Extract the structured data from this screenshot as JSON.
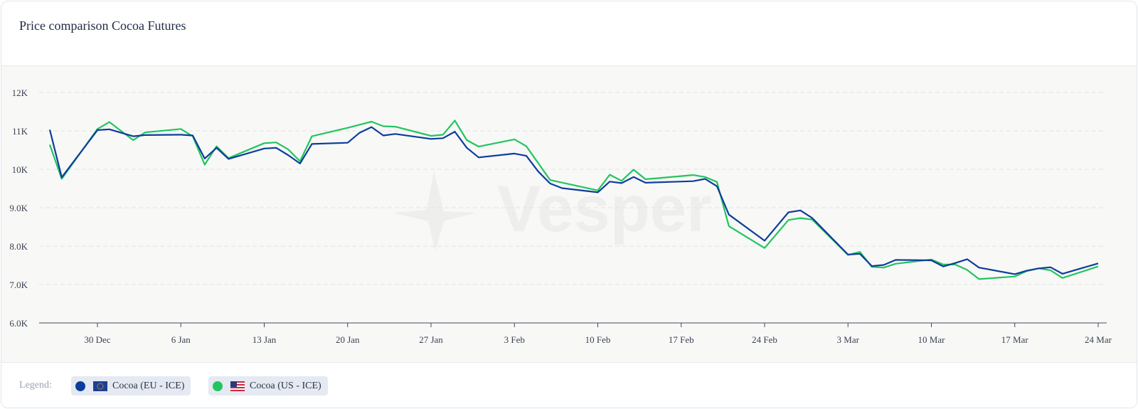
{
  "title": "Price comparison Cocoa Futures",
  "watermark": "Vesper",
  "legend": {
    "label": "Legend:",
    "items": [
      {
        "name": "Cocoa (EU - ICE)",
        "color": "#0d3d9c",
        "flag": "eu-flag-icon"
      },
      {
        "name": "Cocoa (US - ICE)",
        "color": "#22c55e",
        "flag": "us-flag-icon"
      }
    ]
  },
  "chart_data": {
    "type": "line",
    "title": "Price comparison Cocoa Futures",
    "xlabel": "",
    "ylabel": "",
    "ylim": [
      6000,
      12000
    ],
    "yticks": [
      6000,
      7000,
      8000,
      9000,
      10000,
      11000,
      12000
    ],
    "ytick_labels": [
      "6.0K",
      "7.0K",
      "8.0K",
      "9.0K",
      "10K",
      "11K",
      "12K"
    ],
    "xlim": [
      "2024-12-25",
      "2025-03-24"
    ],
    "xticks": [
      "2024-12-30",
      "2025-01-06",
      "2025-01-13",
      "2025-01-20",
      "2025-01-27",
      "2025-02-03",
      "2025-02-10",
      "2025-02-17",
      "2025-02-24",
      "2025-03-03",
      "2025-03-10",
      "2025-03-17",
      "2025-03-24"
    ],
    "xtick_labels": [
      "30 Dec",
      "6 Jan",
      "13 Jan",
      "20 Jan",
      "27 Jan",
      "3 Feb",
      "10 Feb",
      "17 Feb",
      "24 Feb",
      "3 Mar",
      "10 Mar",
      "17 Mar",
      "24 Mar"
    ],
    "grid": true,
    "legend_position": "bottom",
    "series": [
      {
        "name": "Cocoa (EU - ICE)",
        "color": "#0d3d9c",
        "points": [
          [
            "2024-12-26",
            11030
          ],
          [
            "2024-12-27",
            9790
          ],
          [
            "2024-12-30",
            11020
          ],
          [
            "2024-12-31",
            11040
          ],
          [
            "2025-01-02",
            10860
          ],
          [
            "2025-01-03",
            10890
          ],
          [
            "2025-01-06",
            10900
          ],
          [
            "2025-01-07",
            10880
          ],
          [
            "2025-01-08",
            10280
          ],
          [
            "2025-01-09",
            10560
          ],
          [
            "2025-01-10",
            10270
          ],
          [
            "2025-01-13",
            10540
          ],
          [
            "2025-01-14",
            10560
          ],
          [
            "2025-01-15",
            10370
          ],
          [
            "2025-01-16",
            10150
          ],
          [
            "2025-01-17",
            10660
          ],
          [
            "2025-01-20",
            10690
          ],
          [
            "2025-01-21",
            10950
          ],
          [
            "2025-01-22",
            11100
          ],
          [
            "2025-01-23",
            10880
          ],
          [
            "2025-01-24",
            10920
          ],
          [
            "2025-01-27",
            10790
          ],
          [
            "2025-01-28",
            10810
          ],
          [
            "2025-01-29",
            10980
          ],
          [
            "2025-01-30",
            10560
          ],
          [
            "2025-01-31",
            10310
          ],
          [
            "2025-02-03",
            10410
          ],
          [
            "2025-02-04",
            10350
          ],
          [
            "2025-02-05",
            9940
          ],
          [
            "2025-02-06",
            9630
          ],
          [
            "2025-02-07",
            9510
          ],
          [
            "2025-02-10",
            9400
          ],
          [
            "2025-02-11",
            9680
          ],
          [
            "2025-02-12",
            9640
          ],
          [
            "2025-02-13",
            9800
          ],
          [
            "2025-02-14",
            9650
          ],
          [
            "2025-02-18",
            9690
          ],
          [
            "2025-02-19",
            9750
          ],
          [
            "2025-02-20",
            9560
          ],
          [
            "2025-02-21",
            8820
          ],
          [
            "2025-02-24",
            8140
          ],
          [
            "2025-02-26",
            8880
          ],
          [
            "2025-02-27",
            8930
          ],
          [
            "2025-02-28",
            8730
          ],
          [
            "2025-03-03",
            7780
          ],
          [
            "2025-03-04",
            7800
          ],
          [
            "2025-03-05",
            7480
          ],
          [
            "2025-03-06",
            7510
          ],
          [
            "2025-03-07",
            7640
          ],
          [
            "2025-03-10",
            7630
          ],
          [
            "2025-03-11",
            7470
          ],
          [
            "2025-03-12",
            7560
          ],
          [
            "2025-03-13",
            7660
          ],
          [
            "2025-03-14",
            7440
          ],
          [
            "2025-03-17",
            7270
          ],
          [
            "2025-03-18",
            7360
          ],
          [
            "2025-03-19",
            7420
          ],
          [
            "2025-03-20",
            7450
          ],
          [
            "2025-03-21",
            7280
          ],
          [
            "2025-03-24",
            7550
          ]
        ]
      },
      {
        "name": "Cocoa (US - ICE)",
        "color": "#22c55e",
        "points": [
          [
            "2024-12-26",
            10640
          ],
          [
            "2024-12-27",
            9750
          ],
          [
            "2024-12-30",
            11050
          ],
          [
            "2024-12-31",
            11230
          ],
          [
            "2025-01-02",
            10760
          ],
          [
            "2025-01-03",
            10960
          ],
          [
            "2025-01-06",
            11050
          ],
          [
            "2025-01-07",
            10860
          ],
          [
            "2025-01-08",
            10120
          ],
          [
            "2025-01-09",
            10600
          ],
          [
            "2025-01-10",
            10290
          ],
          [
            "2025-01-13",
            10680
          ],
          [
            "2025-01-14",
            10700
          ],
          [
            "2025-01-15",
            10520
          ],
          [
            "2025-01-16",
            10210
          ],
          [
            "2025-01-17",
            10860
          ],
          [
            "2025-01-20",
            11080
          ],
          [
            "2025-01-22",
            11240
          ],
          [
            "2025-01-23",
            11120
          ],
          [
            "2025-01-24",
            11110
          ],
          [
            "2025-01-27",
            10870
          ],
          [
            "2025-01-28",
            10900
          ],
          [
            "2025-01-29",
            11270
          ],
          [
            "2025-01-30",
            10760
          ],
          [
            "2025-01-31",
            10590
          ],
          [
            "2025-02-03",
            10780
          ],
          [
            "2025-02-04",
            10600
          ],
          [
            "2025-02-06",
            9720
          ],
          [
            "2025-02-10",
            9450
          ],
          [
            "2025-02-11",
            9860
          ],
          [
            "2025-02-12",
            9700
          ],
          [
            "2025-02-13",
            9990
          ],
          [
            "2025-02-14",
            9740
          ],
          [
            "2025-02-18",
            9850
          ],
          [
            "2025-02-19",
            9800
          ],
          [
            "2025-02-20",
            9670
          ],
          [
            "2025-02-21",
            8520
          ],
          [
            "2025-02-24",
            7950
          ],
          [
            "2025-02-26",
            8680
          ],
          [
            "2025-02-27",
            8730
          ],
          [
            "2025-02-28",
            8690
          ],
          [
            "2025-03-03",
            7770
          ],
          [
            "2025-03-04",
            7850
          ],
          [
            "2025-03-05",
            7460
          ],
          [
            "2025-03-06",
            7440
          ],
          [
            "2025-03-07",
            7540
          ],
          [
            "2025-03-10",
            7650
          ],
          [
            "2025-03-11",
            7520
          ],
          [
            "2025-03-12",
            7520
          ],
          [
            "2025-03-13",
            7380
          ],
          [
            "2025-03-14",
            7140
          ],
          [
            "2025-03-17",
            7210
          ],
          [
            "2025-03-18",
            7350
          ],
          [
            "2025-03-19",
            7420
          ],
          [
            "2025-03-20",
            7370
          ],
          [
            "2025-03-21",
            7170
          ],
          [
            "2025-03-24",
            7470
          ]
        ]
      }
    ]
  }
}
